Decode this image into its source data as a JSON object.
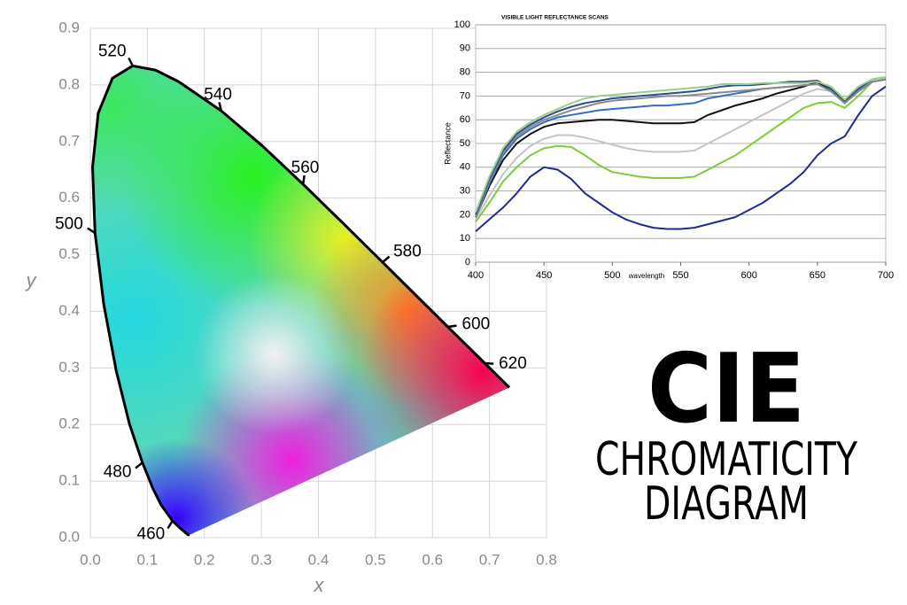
{
  "chart_data": [
    {
      "type": "chromaticity",
      "xlabel": "x",
      "ylabel": "y",
      "xlim": [
        0,
        0.8
      ],
      "ylim": [
        0,
        0.9
      ],
      "xticks": [
        {
          "value": 0,
          "label": "0.0"
        },
        0.1,
        0.2,
        0.3,
        0.4,
        0.5,
        0.6,
        0.7,
        0.8
      ],
      "yticks": [
        {
          "value": 0,
          "label": "0.0"
        },
        0.1,
        0.2,
        0.3,
        0.4,
        0.5,
        0.6,
        0.7,
        0.8,
        0.9
      ],
      "grid": true,
      "locus": {
        "x": [
          0.1741,
          0.1714,
          0.1644,
          0.1566,
          0.144,
          0.1241,
          0.1096,
          0.0913,
          0.0687,
          0.0454,
          0.0235,
          0.0082,
          0.0039,
          0.0139,
          0.0389,
          0.0743,
          0.1142,
          0.1547,
          0.2296,
          0.3016,
          0.3731,
          0.4441,
          0.5125,
          0.5752,
          0.627,
          0.6658,
          0.6915,
          0.719,
          0.7347
        ],
        "y": [
          0.005,
          0.0051,
          0.0109,
          0.0177,
          0.0297,
          0.0578,
          0.0868,
          0.1327,
          0.2007,
          0.295,
          0.4127,
          0.5384,
          0.6548,
          0.7502,
          0.812,
          0.8338,
          0.8262,
          0.8059,
          0.7543,
          0.6923,
          0.6245,
          0.5547,
          0.4866,
          0.4242,
          0.3725,
          0.334,
          0.3083,
          0.2809,
          0.2653
        ]
      },
      "wavelength_marks": {
        "values": [
          460,
          480,
          500,
          520,
          540,
          560,
          580,
          600,
          620
        ],
        "x": [
          0.144,
          0.0913,
          0.0082,
          0.0743,
          0.2296,
          0.3731,
          0.5125,
          0.627,
          0.6915
        ],
        "y": [
          0.0297,
          0.1327,
          0.5384,
          0.8338,
          0.7543,
          0.6245,
          0.4866,
          0.3725,
          0.3083
        ]
      }
    },
    {
      "type": "line",
      "title": "VISIBLE LIGHT REFLECTANCE SCANS",
      "xlabel": "wavelength",
      "ylabel": "Reflectance",
      "xlim": [
        400,
        700
      ],
      "ylim": [
        0,
        100
      ],
      "xticks": [
        400,
        450,
        500,
        550,
        600,
        650,
        700
      ],
      "yticks": [
        0,
        10,
        20,
        30,
        40,
        50,
        60,
        70,
        80,
        90,
        100
      ],
      "grid": true,
      "x": [
        400,
        410,
        420,
        430,
        440,
        450,
        460,
        470,
        480,
        490,
        500,
        510,
        520,
        530,
        540,
        550,
        560,
        570,
        580,
        590,
        600,
        610,
        620,
        630,
        640,
        650,
        660,
        670,
        680,
        690,
        700
      ],
      "series": [
        {
          "color": "#1f2a8c",
          "values": [
            13,
            18,
            23,
            29,
            36,
            40,
            39,
            35,
            29,
            25,
            21,
            18,
            16,
            14.5,
            14,
            14,
            14.5,
            16,
            17.5,
            19,
            22,
            25,
            29,
            33,
            38,
            45,
            50,
            53,
            62,
            70,
            74
          ]
        },
        {
          "color": "#7ccc3a",
          "values": [
            17,
            25,
            34,
            40,
            45,
            48,
            49,
            48.5,
            45,
            41,
            38,
            37,
            36,
            35.5,
            35.5,
            35.5,
            36,
            39,
            42,
            45,
            49,
            53,
            57,
            61,
            65,
            67,
            67.5,
            65,
            70,
            76,
            77
          ]
        },
        {
          "color": "#c4c4c4",
          "values": [
            18,
            28,
            37,
            44,
            49,
            52,
            53.5,
            53.5,
            52.5,
            51,
            49.5,
            48,
            47,
            46.5,
            46.5,
            46.5,
            47,
            50,
            53,
            56,
            59,
            62,
            65,
            68,
            71,
            73,
            72,
            67,
            72,
            76,
            77
          ]
        },
        {
          "color": "#111111",
          "values": [
            19,
            32,
            43,
            50,
            54,
            57,
            58.5,
            59,
            59.5,
            60,
            60,
            59.5,
            59,
            58.5,
            58.5,
            58.5,
            59,
            62,
            64,
            66,
            67.5,
            69,
            71,
            72.5,
            74,
            76,
            72,
            67,
            72,
            76,
            77
          ]
        },
        {
          "color": "#2f6fc4",
          "values": [
            19,
            33,
            45,
            52,
            56,
            59,
            61,
            62,
            63,
            64,
            64.5,
            65,
            65.5,
            66,
            66,
            66.5,
            67,
            69,
            70,
            71,
            72,
            73,
            73.5,
            74,
            74.5,
            75,
            72,
            67,
            72,
            76,
            77
          ]
        },
        {
          "color": "#8a8a8a",
          "values": [
            19,
            34,
            46,
            53,
            57,
            60,
            62,
            64,
            65.5,
            67,
            68,
            68.5,
            69,
            69.5,
            70,
            70,
            70.5,
            71,
            71.5,
            72,
            72.5,
            73,
            73.5,
            74,
            74.5,
            75,
            72,
            67,
            72,
            76,
            77
          ]
        },
        {
          "color": "#2a4f8f",
          "values": [
            20,
            35,
            47,
            54,
            58,
            61,
            63.5,
            65.5,
            67,
            68,
            69,
            69.5,
            70,
            70.5,
            71,
            71.5,
            72,
            73,
            74,
            74.5,
            74.5,
            75,
            75.5,
            76,
            76,
            76.5,
            73,
            68,
            73,
            77,
            78
          ]
        },
        {
          "color": "#9ccf8a",
          "values": [
            21,
            36,
            48,
            55,
            59,
            62,
            64.5,
            67,
            69,
            70,
            70.5,
            71,
            71.5,
            72,
            72.5,
            73,
            73.5,
            74,
            75,
            75,
            75,
            75.5,
            75.5,
            75.5,
            75.5,
            76,
            74,
            68.5,
            74,
            77,
            78
          ]
        }
      ]
    }
  ],
  "heading": {
    "line1": "CIE",
    "line2": "CHROMATICITY",
    "line3": "DIAGRAM"
  }
}
